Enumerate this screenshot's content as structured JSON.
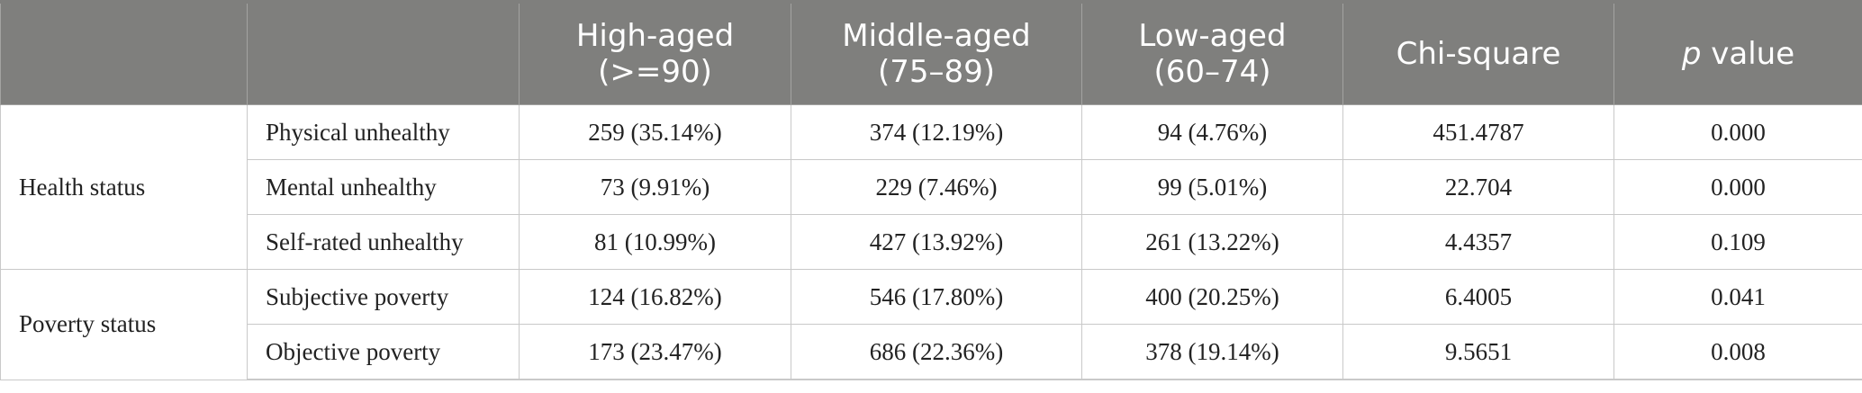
{
  "table": {
    "headers": [
      {
        "line1": "",
        "line2": ""
      },
      {
        "line1": "",
        "line2": ""
      },
      {
        "line1": "High-aged",
        "line2": "(>=90)"
      },
      {
        "line1": "Middle-aged",
        "line2": "(75–89)"
      },
      {
        "line1": "Low-aged",
        "line2": "(60–74)"
      },
      {
        "line1": "Chi-square",
        "line2": ""
      },
      {
        "p": "p",
        "rest": " value"
      }
    ],
    "groups": [
      {
        "label": "Health status",
        "rows": [
          {
            "label": "Physical unhealthy",
            "high": "259 (35.14%)",
            "middle": "374 (12.19%)",
            "low": "94 (4.76%)",
            "chi": "451.4787",
            "p": "0.000"
          },
          {
            "label": "Mental unhealthy",
            "high": "73 (9.91%)",
            "middle": "229 (7.46%)",
            "low": "99 (5.01%)",
            "chi": "22.704",
            "p": "0.000"
          },
          {
            "label": "Self-rated unhealthy",
            "high": "81 (10.99%)",
            "middle": "427 (13.92%)",
            "low": "261 (13.22%)",
            "chi": "4.4357",
            "p": "0.109"
          }
        ]
      },
      {
        "label": "Poverty status",
        "rows": [
          {
            "label": "Subjective poverty",
            "high": "124 (16.82%)",
            "middle": "546 (17.80%)",
            "low": "400 (20.25%)",
            "chi": "6.4005",
            "p": "0.041"
          },
          {
            "label": "Objective poverty",
            "high": "173 (23.47%)",
            "middle": "686 (22.36%)",
            "low": "378 (19.14%)",
            "chi": "9.5651",
            "p": "0.008"
          }
        ]
      }
    ]
  }
}
